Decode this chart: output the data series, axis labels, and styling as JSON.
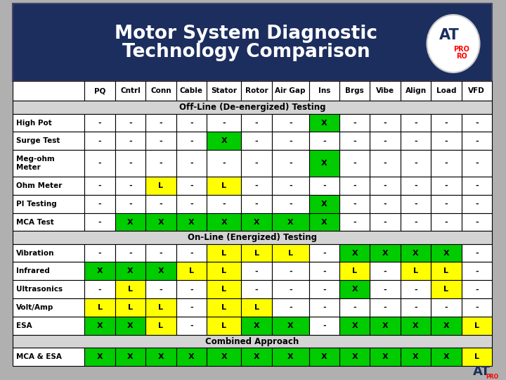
{
  "title_line1": "Motor System Diagnostic",
  "title_line2": "Technology Comparison",
  "title_bg": "#1c2e5e",
  "outer_bg": "#b0b0b0",
  "columns": [
    "",
    "PQ",
    "Cntrl",
    "Conn",
    "Cable",
    "Stator",
    "Rotor",
    "Air Gap",
    "Ins",
    "Brgs",
    "Vibe",
    "Align",
    "Load",
    "VFD"
  ],
  "col_widths": [
    1.7,
    0.72,
    0.72,
    0.72,
    0.72,
    0.82,
    0.72,
    0.88,
    0.72,
    0.72,
    0.72,
    0.72,
    0.72,
    0.72
  ],
  "rows": [
    {
      "label": "High Pot",
      "cells": [
        "-",
        "-",
        "-",
        "-",
        "-",
        "-",
        "-",
        "X",
        "-",
        "-",
        "-",
        "-",
        "-"
      ]
    },
    {
      "label": "Surge Test",
      "cells": [
        "-",
        "-",
        "-",
        "-",
        "X",
        "-",
        "-",
        "-",
        "-",
        "-",
        "-",
        "-",
        "-"
      ]
    },
    {
      "label": "Meg-ohm\nMeter",
      "cells": [
        "-",
        "-",
        "-",
        "-",
        "-",
        "-",
        "-",
        "X",
        "-",
        "-",
        "-",
        "-",
        "-"
      ]
    },
    {
      "label": "Ohm Meter",
      "cells": [
        "-",
        "-",
        "L",
        "-",
        "L",
        "-",
        "-",
        "-",
        "-",
        "-",
        "-",
        "-",
        "-"
      ]
    },
    {
      "label": "PI Testing",
      "cells": [
        "-",
        "-",
        "-",
        "-",
        "-",
        "-",
        "-",
        "X",
        "-",
        "-",
        "-",
        "-",
        "-"
      ]
    },
    {
      "label": "MCA Test",
      "cells": [
        "-",
        "X",
        "X",
        "X",
        "X",
        "X",
        "X",
        "X",
        "-",
        "-",
        "-",
        "-",
        "-"
      ]
    },
    {
      "label": "Vibration",
      "cells": [
        "-",
        "-",
        "-",
        "-",
        "L",
        "L",
        "L",
        "-",
        "X",
        "X",
        "X",
        "X",
        "-"
      ]
    },
    {
      "label": "Infrared",
      "cells": [
        "X",
        "X",
        "X",
        "L",
        "L",
        "-",
        "-",
        "-",
        "L",
        "-",
        "L",
        "L",
        "-"
      ]
    },
    {
      "label": "Ultrasonics",
      "cells": [
        "-",
        "L",
        "-",
        "-",
        "L",
        "-",
        "-",
        "-",
        "X",
        "-",
        "-",
        "L",
        "-"
      ]
    },
    {
      "label": "Volt/Amp",
      "cells": [
        "L",
        "L",
        "L",
        "-",
        "L",
        "L",
        "-",
        "-",
        "-",
        "-",
        "-",
        "-",
        "-"
      ]
    },
    {
      "label": "ESA",
      "cells": [
        "X",
        "X",
        "L",
        "-",
        "L",
        "X",
        "X",
        "-",
        "X",
        "X",
        "X",
        "X",
        "L"
      ]
    },
    {
      "label": "MCA & ESA",
      "cells": [
        "X",
        "X",
        "X",
        "X",
        "X",
        "X",
        "X",
        "X",
        "X",
        "X",
        "X",
        "X",
        "L"
      ]
    }
  ],
  "sections": [
    {
      "text": "Off-Line (De-energized) Testing",
      "rows": [
        0,
        1,
        2,
        3,
        4,
        5
      ]
    },
    {
      "text": "On-Line (Energized) Testing",
      "rows": [
        6,
        7,
        8,
        9,
        10
      ]
    },
    {
      "text": "Combined Approach",
      "rows": [
        11
      ]
    }
  ],
  "cell_colors": {
    "X": "#00cc00",
    "L": "#ffff00",
    "-": "#ffffff"
  },
  "section_bg": "#d4d4d4",
  "header_bg": "#ffffff",
  "border_color": "#000000"
}
